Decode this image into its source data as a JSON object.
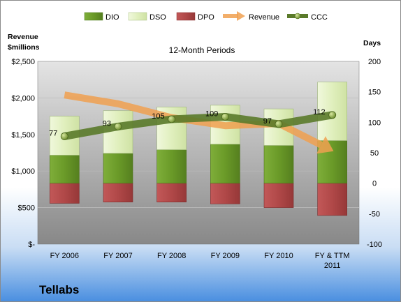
{
  "company": "Tellabs",
  "chart_data": {
    "type": "bar",
    "title": "12-Month Periods",
    "left_axis_label": "Revenue\n$millions",
    "right_axis_label": "Days",
    "categories": [
      "FY 2006",
      "FY 2007",
      "FY 2008",
      "FY 2009",
      "FY 2010",
      "FY & TTM\n2011"
    ],
    "left_axis": {
      "min": 0,
      "max": 2500,
      "step": 500,
      "format": "currency"
    },
    "right_axis": {
      "min": -100,
      "max": 200,
      "step": 50
    },
    "grid": true,
    "legend_placement": "top",
    "series": [
      {
        "name": "DIO",
        "kind": "bar-stack",
        "axis": "right",
        "color": "#6e9b2f",
        "values": [
          46,
          49,
          55,
          64,
          62,
          70
        ]
      },
      {
        "name": "DSO",
        "kind": "bar-stack",
        "axis": "right",
        "color": "#e2f0c2",
        "values": [
          64,
          70,
          70,
          64,
          60,
          96
        ]
      },
      {
        "name": "DPO",
        "kind": "bar-negative",
        "axis": "right",
        "color": "#b94a4a",
        "values": [
          -33,
          -31,
          -31,
          -34,
          -40,
          -53
        ]
      },
      {
        "name": "Revenue",
        "kind": "arrow-line",
        "axis": "left",
        "color": "#f0a050",
        "values": [
          2040,
          1920,
          1730,
          1620,
          1650,
          1280
        ]
      },
      {
        "name": "CCC",
        "kind": "line",
        "axis": "right",
        "color": "#5a7a2a",
        "values": [
          77,
          93,
          105,
          109,
          97,
          112
        ]
      }
    ],
    "data_labels": {
      "series": "CCC",
      "values": [
        77,
        93,
        105,
        109,
        97,
        112
      ]
    }
  }
}
